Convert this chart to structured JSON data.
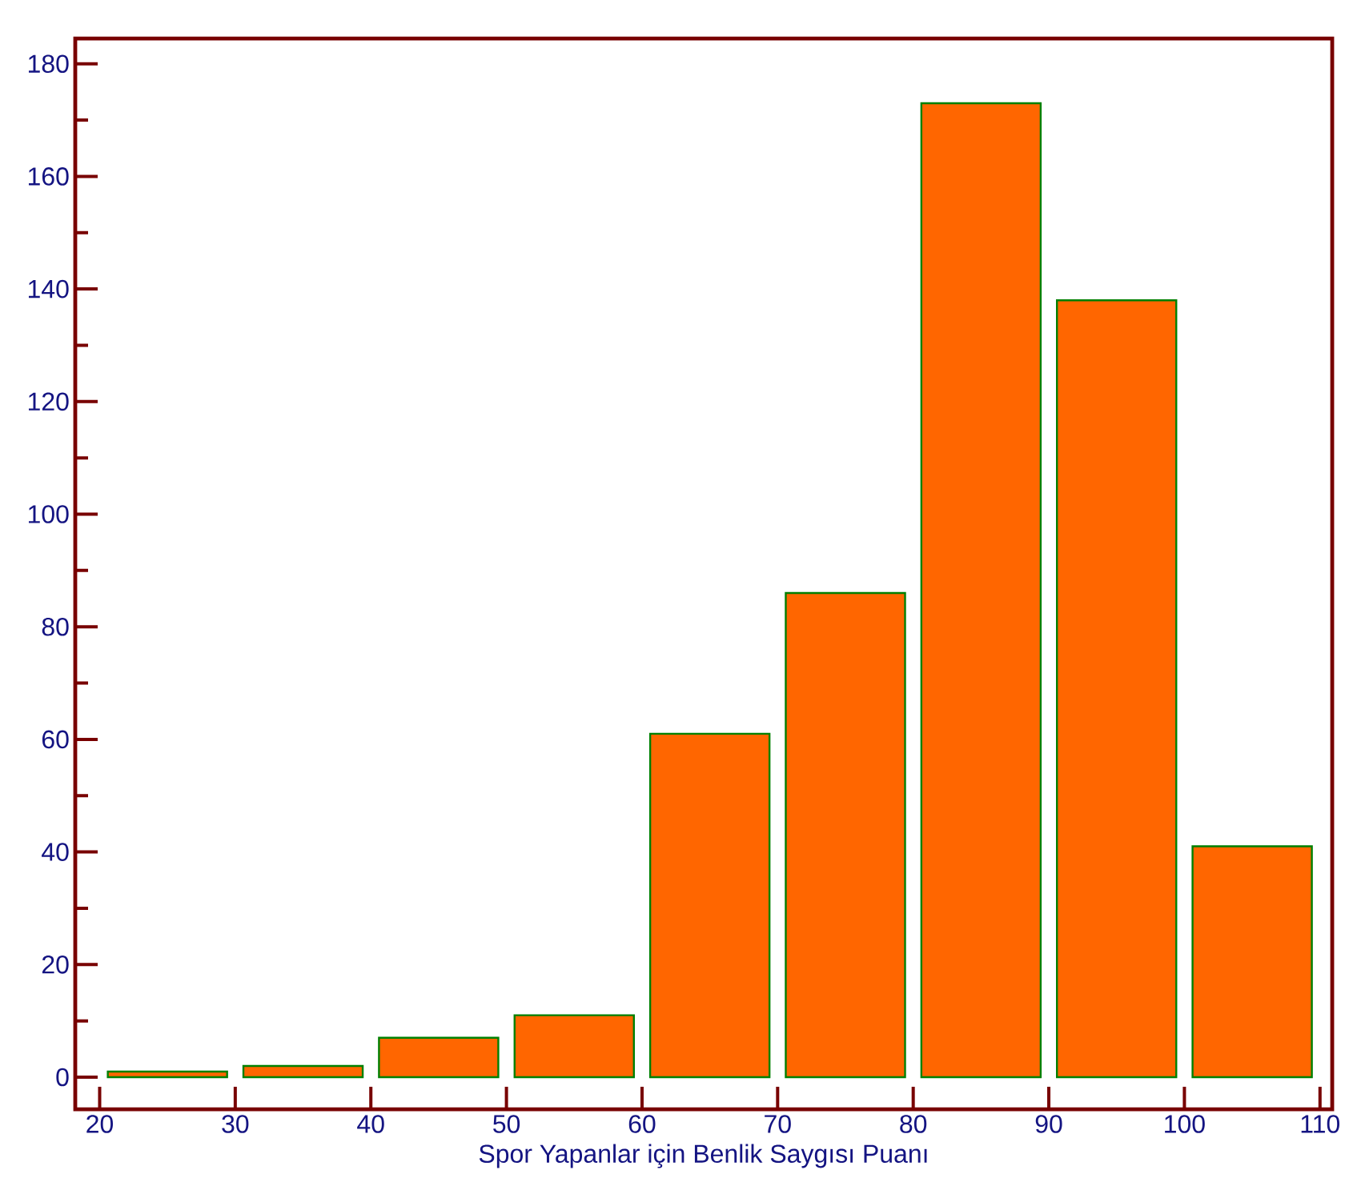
{
  "chart_data": {
    "type": "histogram",
    "xlabel": "Spor Yapanlar için Benlik Saygısı Puanı",
    "bins": [
      20,
      30,
      40,
      50,
      60,
      70,
      80,
      90,
      100,
      110
    ],
    "values": [
      1,
      2,
      7,
      11,
      61,
      86,
      173,
      138,
      41
    ],
    "color": "#ff6600",
    "xlim": [
      18.2,
      110.9
    ],
    "ylim": [
      -5.7,
      184.5
    ],
    "xticks": [
      20,
      30,
      40,
      50,
      60,
      70,
      80,
      90,
      100,
      110
    ],
    "yticks": [
      0,
      20,
      40,
      60,
      80,
      100,
      120,
      140,
      160,
      180
    ]
  }
}
